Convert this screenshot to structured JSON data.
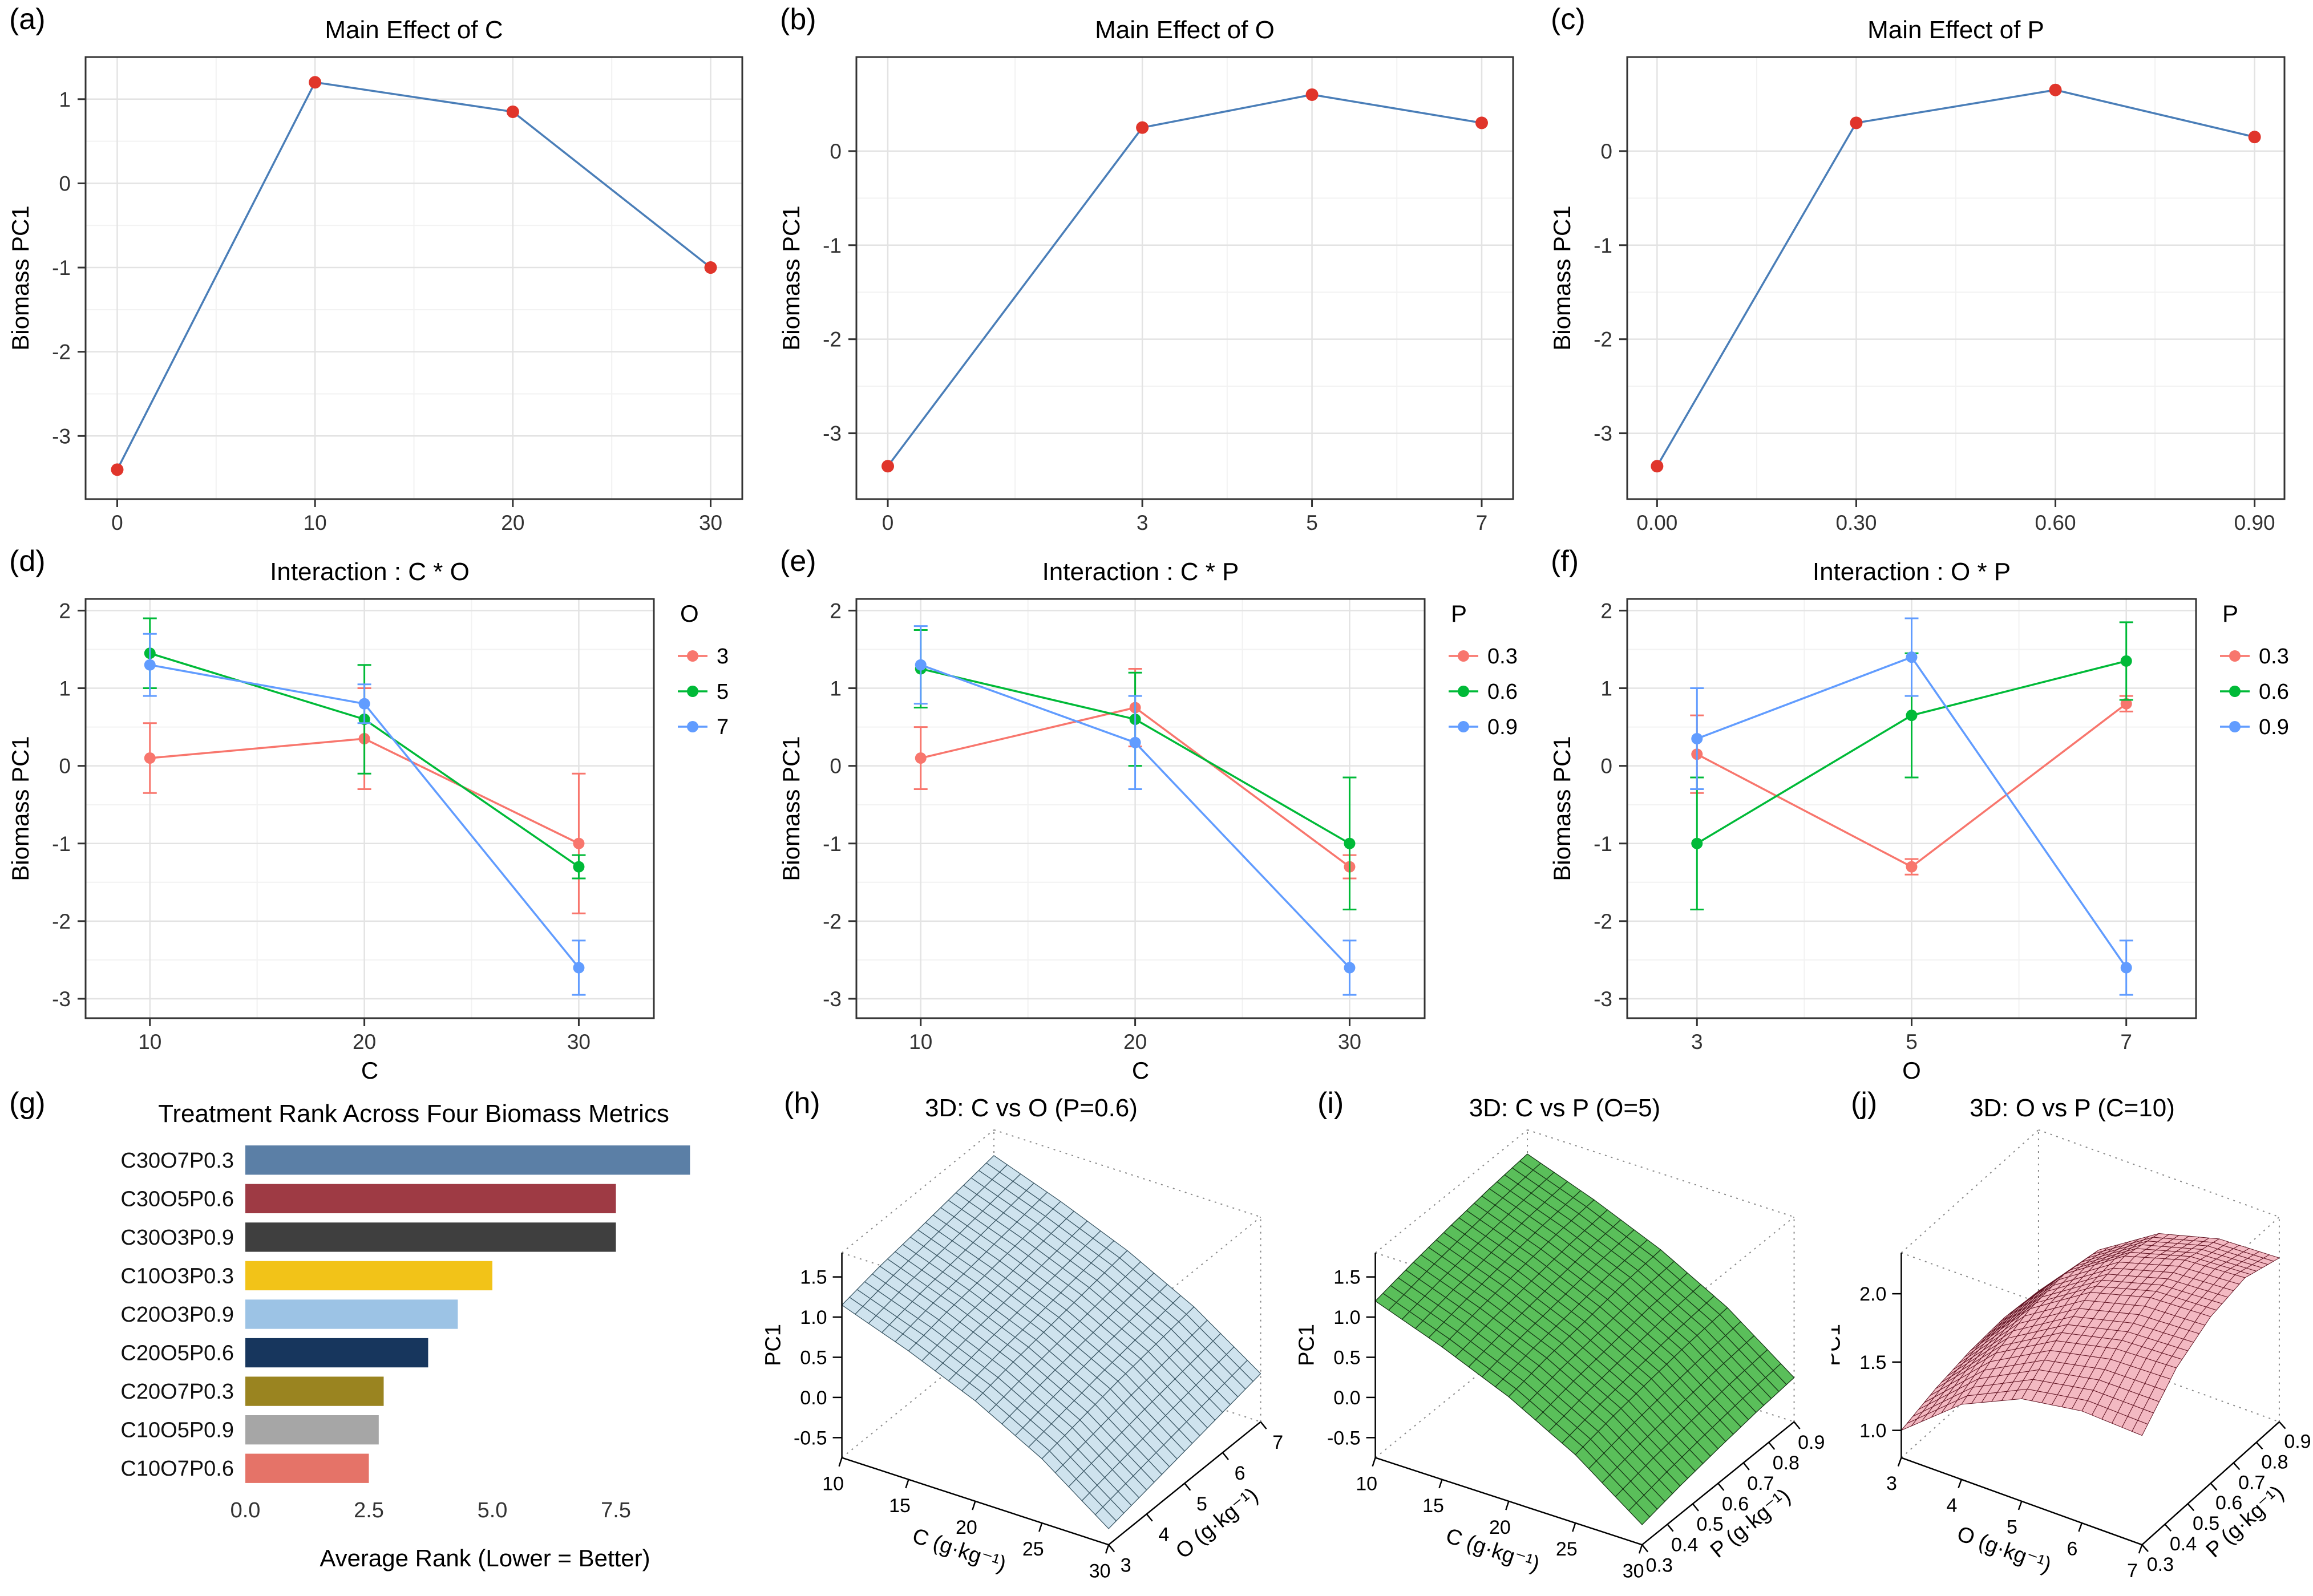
{
  "chart_data": [
    {
      "panel_label": "(a)",
      "type": "line",
      "title": "Main Effect of C",
      "ylabel": "Biomass PC1",
      "xlabel": "",
      "x_ticks": [
        0,
        10,
        20,
        30
      ],
      "x_tick_labels": [
        "0",
        "10",
        "20",
        "30"
      ],
      "x_range": [
        -1.6,
        31.6
      ],
      "y_ticks": [
        1,
        0,
        -1,
        -2,
        -3
      ],
      "y_tick_labels": [
        "1",
        "0",
        "-1",
        "-2",
        "-3"
      ],
      "y_range": [
        -3.75,
        1.5
      ],
      "series": [
        {
          "name": "C",
          "color": "#4a7eb8",
          "point_color": "#e0352b",
          "x": [
            0,
            10,
            20,
            30
          ],
          "y": [
            -3.4,
            1.2,
            0.85,
            -1.0
          ]
        }
      ]
    },
    {
      "panel_label": "(b)",
      "type": "line",
      "title": "Main Effect of O",
      "ylabel": "Biomass PC1",
      "xlabel": "",
      "x_ticks": [
        0,
        3,
        5,
        7
      ],
      "x_tick_labels": [
        "0",
        "3",
        "5",
        "7"
      ],
      "x_range": [
        -0.37,
        7.37
      ],
      "y_ticks": [
        0,
        -1,
        -2,
        -3
      ],
      "y_tick_labels": [
        "0",
        "-1",
        "-2",
        "-3"
      ],
      "y_range": [
        -3.7,
        1.0
      ],
      "series": [
        {
          "name": "O",
          "color": "#4a7eb8",
          "point_color": "#e0352b",
          "x": [
            0,
            3,
            5,
            7
          ],
          "y": [
            -3.35,
            0.25,
            0.6,
            0.3
          ]
        }
      ]
    },
    {
      "panel_label": "(c)",
      "type": "line",
      "title": "Main Effect of P",
      "ylabel": "Biomass PC1",
      "xlabel": "",
      "x_ticks": [
        0,
        0.3,
        0.6,
        0.9
      ],
      "x_tick_labels": [
        "0.00",
        "0.30",
        "0.60",
        "0.90"
      ],
      "x_range": [
        -0.045,
        0.945
      ],
      "y_ticks": [
        0,
        -1,
        -2,
        -3
      ],
      "y_tick_labels": [
        "0",
        "-1",
        "-2",
        "-3"
      ],
      "y_range": [
        -3.7,
        1.0
      ],
      "series": [
        {
          "name": "P",
          "color": "#4a7eb8",
          "point_color": "#e0352b",
          "x": [
            0,
            0.3,
            0.6,
            0.9
          ],
          "y": [
            -3.35,
            0.3,
            0.65,
            0.15
          ]
        }
      ]
    },
    {
      "panel_label": "(d)",
      "type": "line",
      "title": "Interaction : C * O",
      "ylabel": "Biomass PC1",
      "xlabel": "C",
      "x_ticks": [
        10,
        20,
        30
      ],
      "x_tick_labels": [
        "10",
        "20",
        "30"
      ],
      "x_range": [
        7,
        33.5
      ],
      "y_ticks": [
        2,
        1,
        0,
        -1,
        -2,
        -3
      ],
      "y_tick_labels": [
        "2",
        "1",
        "0",
        "-1",
        "-2",
        "-3"
      ],
      "y_range": [
        -3.25,
        2.15
      ],
      "legend": {
        "title": "O"
      },
      "series": [
        {
          "name": "3",
          "color": "#F8766D",
          "x": [
            10,
            20,
            30
          ],
          "y": [
            0.1,
            0.35,
            -1.0
          ],
          "err": [
            0.45,
            0.65,
            0.9
          ]
        },
        {
          "name": "5",
          "color": "#00BA38",
          "x": [
            10,
            20,
            30
          ],
          "y": [
            1.45,
            0.6,
            -1.3
          ],
          "err": [
            0.45,
            0.7,
            0.15
          ]
        },
        {
          "name": "7",
          "color": "#619CFF",
          "x": [
            10,
            20,
            30
          ],
          "y": [
            1.3,
            0.8,
            -2.6
          ],
          "err": [
            0.4,
            0.25,
            0.35
          ]
        }
      ]
    },
    {
      "panel_label": "(e)",
      "type": "line",
      "title": "Interaction : C * P",
      "ylabel": "Biomass PC1",
      "xlabel": "C",
      "x_ticks": [
        10,
        20,
        30
      ],
      "x_tick_labels": [
        "10",
        "20",
        "30"
      ],
      "x_range": [
        7,
        33.5
      ],
      "y_ticks": [
        2,
        1,
        0,
        -1,
        -2,
        -3
      ],
      "y_tick_labels": [
        "2",
        "1",
        "0",
        "-1",
        "-2",
        "-3"
      ],
      "y_range": [
        -3.25,
        2.15
      ],
      "legend": {
        "title": "P"
      },
      "series": [
        {
          "name": "0.3",
          "color": "#F8766D",
          "x": [
            10,
            20,
            30
          ],
          "y": [
            0.1,
            0.75,
            -1.3
          ],
          "err": [
            0.4,
            0.5,
            0.15
          ]
        },
        {
          "name": "0.6",
          "color": "#00BA38",
          "x": [
            10,
            20,
            30
          ],
          "y": [
            1.25,
            0.6,
            -1.0
          ],
          "err": [
            0.5,
            0.6,
            0.85
          ]
        },
        {
          "name": "0.9",
          "color": "#619CFF",
          "x": [
            10,
            20,
            30
          ],
          "y": [
            1.3,
            0.3,
            -2.6
          ],
          "err": [
            0.5,
            0.6,
            0.35
          ]
        }
      ]
    },
    {
      "panel_label": "(f)",
      "type": "line",
      "title": "Interaction : O * P",
      "ylabel": "Biomass PC1",
      "xlabel": "O",
      "x_ticks": [
        3,
        5,
        7
      ],
      "x_tick_labels": [
        "3",
        "5",
        "7"
      ],
      "x_range": [
        2.35,
        7.65
      ],
      "y_ticks": [
        2,
        1,
        0,
        -1,
        -2,
        -3
      ],
      "y_tick_labels": [
        "2",
        "1",
        "0",
        "-1",
        "-2",
        "-3"
      ],
      "y_range": [
        -3.25,
        2.15
      ],
      "legend": {
        "title": "P"
      },
      "series": [
        {
          "name": "0.3",
          "color": "#F8766D",
          "x": [
            3,
            5,
            7
          ],
          "y": [
            0.15,
            -1.3,
            0.8
          ],
          "err": [
            0.5,
            0.1,
            0.1
          ]
        },
        {
          "name": "0.6",
          "color": "#00BA38",
          "x": [
            3,
            5,
            7
          ],
          "y": [
            -1.0,
            0.65,
            1.35
          ],
          "err": [
            0.85,
            0.8,
            0.5
          ]
        },
        {
          "name": "0.9",
          "color": "#619CFF",
          "x": [
            3,
            5,
            7
          ],
          "y": [
            0.35,
            1.4,
            -2.6
          ],
          "err": [
            0.65,
            0.5,
            0.35
          ]
        }
      ]
    },
    {
      "panel_label": "(g)",
      "type": "bar",
      "title": "Treatment Rank Across Four Biomass Metrics",
      "xlabel": "Average Rank (Lower = Better)",
      "categories": [
        "C30O7P0.3",
        "C30O5P0.6",
        "C30O3P0.9",
        "C10O3P0.3",
        "C20O3P0.9",
        "C20O5P0.6",
        "C20O7P0.3",
        "C10O5P0.9",
        "C10O7P0.6"
      ],
      "values": [
        9.0,
        7.5,
        7.5,
        5.0,
        4.3,
        3.7,
        2.8,
        2.7,
        2.5
      ],
      "colors": [
        "#5b7fa6",
        "#9e3a44",
        "#3f3f3f",
        "#f2c318",
        "#9cc3e5",
        "#17365d",
        "#9a8420",
        "#a6a6a6",
        "#e57368"
      ],
      "x_ticks": [
        0,
        2.5,
        5,
        7.5
      ],
      "x_tick_labels": [
        "0.0",
        "2.5",
        "5.0",
        "7.5"
      ],
      "x_range": [
        0,
        9.7
      ]
    },
    {
      "panel_label": "(h)",
      "type": "surface",
      "title": "3D: C vs O (P=0.6)",
      "xlabel": "C (g·kg⁻¹)",
      "ylabel": "O (g·kg⁻¹)",
      "zlabel": "PC1",
      "x_ticks": [
        "10",
        "15",
        "20",
        "25",
        "30"
      ],
      "y_ticks": [
        "3",
        "4",
        "5",
        "6",
        "7"
      ],
      "z_ticks": [
        "-0.5",
        "0.0",
        "0.5",
        "1.0",
        "1.5"
      ],
      "z_range": [
        -0.75,
        1.8
      ],
      "fill": "#cfe3ee",
      "stroke": "#3e5a68",
      "mesh": 20,
      "z_grid": [
        [
          1.15,
          1.25,
          1.32,
          1.4,
          1.48
        ],
        [
          0.85,
          0.95,
          1.02,
          1.1,
          1.18
        ],
        [
          0.5,
          0.6,
          0.68,
          0.76,
          0.84
        ],
        [
          0.05,
          0.15,
          0.25,
          0.33,
          0.41
        ],
        [
          -0.55,
          -0.45,
          -0.35,
          -0.25,
          -0.15
        ]
      ]
    },
    {
      "panel_label": "(i)",
      "type": "surface",
      "title": "3D: C vs P (O=5)",
      "xlabel": "C (g·kg⁻¹)",
      "ylabel": "P (g·kg⁻¹)",
      "zlabel": "PC1",
      "x_ticks": [
        "10",
        "15",
        "20",
        "25",
        "30"
      ],
      "y_ticks": [
        "0.3",
        "0.4",
        "0.5",
        "0.6",
        "0.7",
        "0.8",
        "0.9"
      ],
      "z_ticks": [
        "-0.5",
        "0.0",
        "0.5",
        "1.0",
        "1.5"
      ],
      "z_range": [
        -0.75,
        1.8
      ],
      "fill": "#5abf5a",
      "stroke": "#173917",
      "mesh": 20,
      "z_grid": [
        [
          1.2,
          1.3,
          1.38,
          1.45,
          1.5
        ],
        [
          0.9,
          1.0,
          1.08,
          1.15,
          1.2
        ],
        [
          0.55,
          0.65,
          0.72,
          0.8,
          0.85
        ],
        [
          0.1,
          0.2,
          0.28,
          0.35,
          0.4
        ],
        [
          -0.5,
          -0.4,
          -0.32,
          -0.25,
          -0.2
        ]
      ]
    },
    {
      "panel_label": "(j)",
      "type": "surface",
      "title": "3D: O vs P (C=10)",
      "xlabel": "O (g·kg⁻¹)",
      "ylabel": "P (g·kg⁻¹)",
      "zlabel": "PC1",
      "x_ticks": [
        "3",
        "4",
        "5",
        "6",
        "7"
      ],
      "y_ticks": [
        "0.3",
        "0.4",
        "0.5",
        "0.6",
        "0.7",
        "0.8",
        "0.9"
      ],
      "z_ticks": [
        "1.0",
        "1.5",
        "2.0"
      ],
      "z_range": [
        0.8,
        2.3
      ],
      "fill": "#f3b9c2",
      "stroke": "#611423",
      "mesh": 24,
      "z_grid": [
        [
          1.0,
          1.08,
          1.13,
          1.15,
          1.12
        ],
        [
          1.35,
          1.5,
          1.6,
          1.63,
          1.58
        ],
        [
          1.55,
          1.75,
          1.88,
          1.92,
          1.86
        ],
        [
          1.62,
          1.85,
          2.0,
          2.05,
          1.98
        ],
        [
          1.6,
          1.87,
          2.02,
          2.08,
          2.0
        ]
      ]
    }
  ]
}
